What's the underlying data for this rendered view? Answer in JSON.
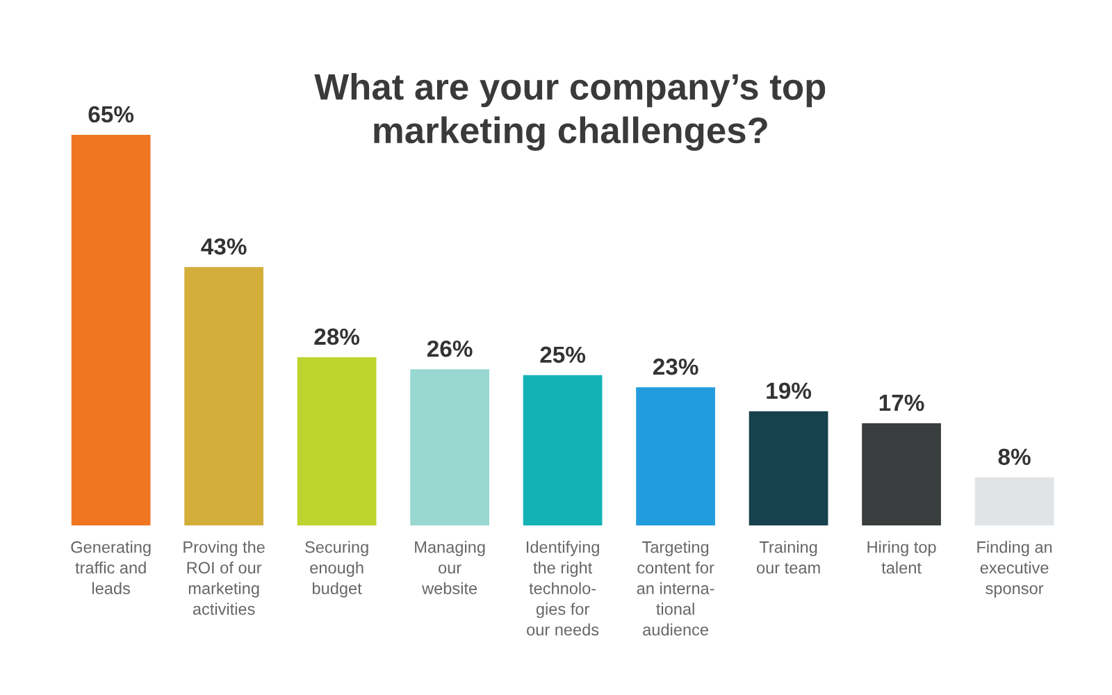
{
  "chart_data": {
    "type": "bar",
    "title": "What are your company’s top\nmarketing challenges?",
    "categories": [
      "Generating\ntraffic and\nleads",
      "Proving the\nROI of our\nmarketing\nactivities",
      "Securing\nenough\nbudget",
      "Managing\nour\nwebsite",
      "Identifying\nthe right\ntechnolo-\ngies for\nour needs",
      "Targeting\ncontent for\nan interna-\ntional\naudience",
      "Training\nour team",
      "Hiring top\ntalent",
      "Finding an\nexecutive\nsponsor"
    ],
    "values": [
      65,
      43,
      28,
      26,
      25,
      23,
      19,
      17,
      8
    ],
    "value_labels": [
      "65%",
      "43%",
      "28%",
      "26%",
      "25%",
      "23%",
      "19%",
      "17%",
      "8%"
    ],
    "colors": [
      "#f07622",
      "#d4ae3a",
      "#bed42e",
      "#98d8d0",
      "#13b3b5",
      "#229cdc",
      "#17414d",
      "#3a3d3d",
      "#e1e4e6"
    ]
  }
}
